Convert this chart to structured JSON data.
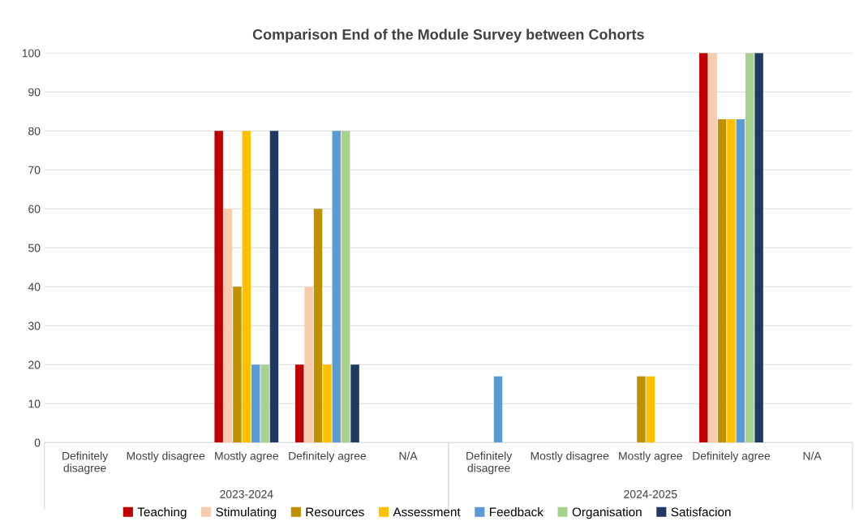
{
  "chart_data": {
    "type": "bar",
    "title": "Comparison End of the Module Survey between Cohorts",
    "categories": [
      "Definitely disagree",
      "Mostly disagree",
      "Mostly agree",
      "Definitely agree",
      "N/A",
      "Definitely disagree",
      "Mostly disagree",
      "Mostly agree",
      "Definitely agree",
      "N/A"
    ],
    "series": [
      {
        "name": "Teaching",
        "color": "#c00000",
        "values": [
          0,
          0,
          80,
          20,
          0,
          0,
          0,
          0,
          100,
          0
        ]
      },
      {
        "name": "Stimulating",
        "color": "#f8cbad",
        "values": [
          0,
          0,
          60,
          40,
          0,
          0,
          0,
          0,
          100,
          0
        ]
      },
      {
        "name": "Resources",
        "color": "#bf9000",
        "values": [
          0,
          0,
          40,
          60,
          0,
          0,
          0,
          17,
          83,
          0
        ]
      },
      {
        "name": "Assessment",
        "color": "#ffc000",
        "values": [
          0,
          0,
          80,
          20,
          0,
          0,
          0,
          17,
          83,
          0
        ]
      },
      {
        "name": "Feedback",
        "color": "#5b9bd5",
        "values": [
          0,
          0,
          20,
          80,
          0,
          17,
          0,
          0,
          83,
          0
        ]
      },
      {
        "name": "Organisation",
        "color": "#a9d18e",
        "values": [
          0,
          0,
          20,
          80,
          0,
          0,
          0,
          0,
          100,
          0
        ]
      },
      {
        "name": "Satisfacion",
        "color": "#203864",
        "values": [
          0,
          0,
          80,
          20,
          0,
          0,
          0,
          0,
          100,
          0
        ]
      }
    ],
    "annotations": [
      "2023-2024",
      "2024-2025"
    ],
    "ylim": [
      0,
      100
    ],
    "yticks": [
      0,
      10,
      20,
      30,
      40,
      50,
      60,
      70,
      80,
      90,
      100
    ],
    "grid": "y",
    "legend": "bottom"
  }
}
